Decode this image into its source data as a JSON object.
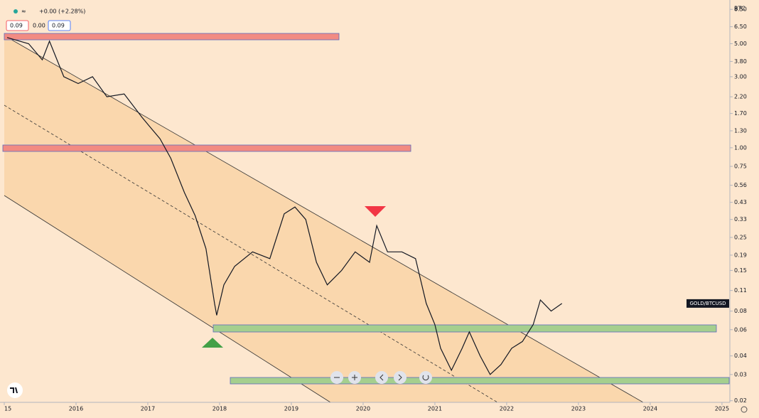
{
  "chart_data": {
    "type": "line",
    "y_scale": "log",
    "axis_unit": "BTC",
    "change": "+0.00 (+2.28%)",
    "ohlc_labels": [
      "0.09",
      "0.00",
      "0.09"
    ],
    "x": [
      2015.04,
      2015.34,
      2015.53,
      2015.63,
      2015.83,
      2016.03,
      2016.23,
      2016.43,
      2016.67,
      2016.92,
      2017.02,
      2017.17,
      2017.32,
      2017.51,
      2017.66,
      2017.81,
      2017.93,
      2017.96,
      2018.06,
      2018.21,
      2018.46,
      2018.7,
      2018.9,
      2019.05,
      2019.2,
      2019.35,
      2019.5,
      2019.7,
      2019.89,
      2020.09,
      2020.19,
      2020.34,
      2020.54,
      2020.73,
      2020.88,
      2021.0,
      2021.08,
      2021.23,
      2021.38,
      2021.48,
      2021.63,
      2021.77,
      2021.92,
      2022.07,
      2022.22,
      2022.37,
      2022.47,
      2022.62,
      2022.77
    ],
    "series": [
      {
        "name": "GOLD/BTCUSD",
        "color": "#131722",
        "values": [
          5.5,
          5.0,
          3.9,
          5.2,
          3.0,
          2.7,
          3.0,
          2.2,
          2.3,
          1.6,
          1.4,
          1.15,
          0.85,
          0.5,
          0.35,
          0.21,
          0.09,
          0.075,
          0.12,
          0.16,
          0.2,
          0.18,
          0.36,
          0.4,
          0.33,
          0.17,
          0.12,
          0.15,
          0.2,
          0.17,
          0.3,
          0.2,
          0.2,
          0.18,
          0.09,
          0.065,
          0.045,
          0.032,
          0.045,
          0.058,
          0.04,
          0.03,
          0.035,
          0.045,
          0.05,
          0.065,
          0.095,
          0.08,
          0.09
        ]
      }
    ],
    "xlim": [
      2015,
      2025.1
    ],
    "xticks": [
      {
        "value": 2015,
        "label": "15"
      },
      2016,
      2017,
      2018,
      2019,
      2020,
      2021,
      2022,
      2023,
      2024,
      {
        "value": 2025,
        "label": "2025"
      }
    ],
    "ylim": [
      0.0195,
      9.0
    ],
    "yticks": [
      {
        "value": 8.5,
        "label": "8.50"
      },
      {
        "value": 6.5,
        "label": "6.50"
      },
      {
        "value": 5,
        "label": "5.00"
      },
      {
        "value": 3.8,
        "label": "3.80"
      },
      {
        "value": 3,
        "label": "3.00"
      },
      {
        "value": 2.2,
        "label": "2.20"
      },
      {
        "value": 1.7,
        "label": "1.70"
      },
      {
        "value": 1.3,
        "label": "1.30"
      },
      {
        "value": 1,
        "label": "1.00"
      },
      0.75,
      0.56,
      0.43,
      0.33,
      0.25,
      0.19,
      0.15,
      0.11,
      0.08,
      0.06,
      0.04,
      0.03,
      0.02
    ]
  }
}
